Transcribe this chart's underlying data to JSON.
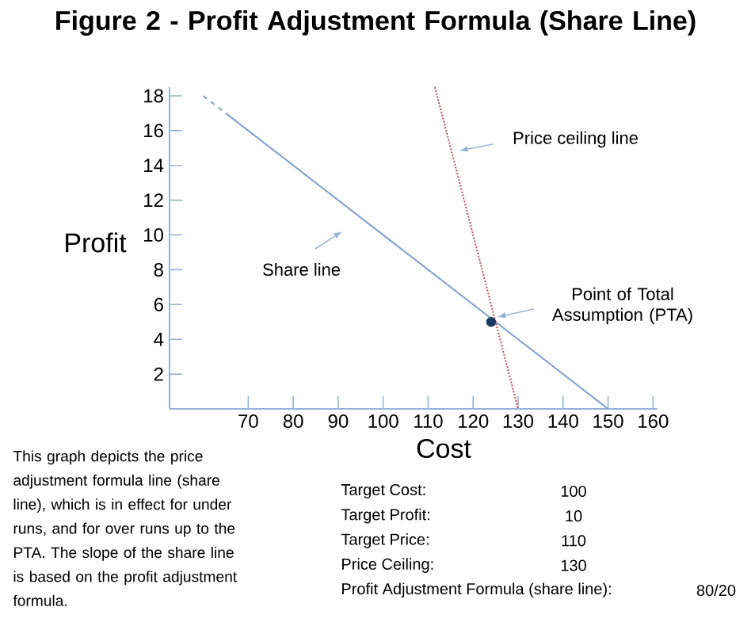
{
  "chart_data": {
    "type": "line",
    "title": "Figure 2   -   Profit Adjustment Formula (Share Line)",
    "xlabel": "Cost",
    "ylabel": "Profit",
    "xlim": [
      52.5,
      161
    ],
    "ylim": [
      0,
      18.5
    ],
    "xticks": [
      70,
      80,
      90,
      100,
      110,
      120,
      130,
      140,
      150,
      160
    ],
    "yticks": [
      2,
      4,
      6,
      8,
      10,
      12,
      14,
      16,
      18
    ],
    "series": [
      {
        "x": [
          60,
          65
        ],
        "values": [
          18,
          17
        ],
        "color": "#7f9fcf",
        "line_style": "dashed"
      },
      {
        "x": [
          65,
          150
        ],
        "values": [
          17,
          0
        ],
        "color": "#7f9fcf",
        "line_style": "solid"
      },
      {
        "x": [
          111.5,
          130
        ],
        "values": [
          18.5,
          0
        ],
        "color": "#c0504d",
        "line_style": "dotted"
      },
      {
        "type": "scatter",
        "x": [
          124
        ],
        "values": [
          5
        ],
        "color": "#1f3864"
      }
    ],
    "annotations": [
      "Price ceiling line",
      "Share line",
      "Point of Total Assumption (PTA)",
      "This graph depicts the price adjustment formula line (share line),  which is in effect for under runs, and for over runs up to the PTA.  The slope of the share line is based on the profit adjustment formula.",
      "Target Cost:",
      "100",
      "Target Profit:",
      "10",
      "Target Price:",
      "110",
      "Price Ceiling:",
      "130",
      "Profit Adjustment Formula (share line):",
      "80/20"
    ]
  }
}
